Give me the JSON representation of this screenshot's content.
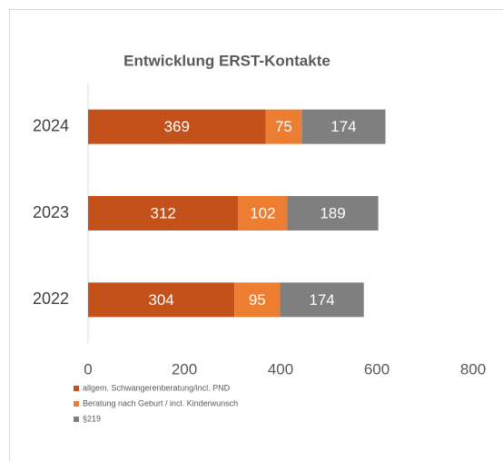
{
  "chart_data": {
    "type": "stacked-barh",
    "title": "Entwicklung ERST-Kontakte",
    "categories": [
      "2024",
      "2023",
      "2022"
    ],
    "series": [
      {
        "name": "allgem. Schwangerenberatung/incl. PND",
        "color": "#c4511a",
        "values": [
          369,
          312,
          304
        ]
      },
      {
        "name": "Beratung nach Geburt / incl. Kinderwunsch",
        "color": "#ed7d31",
        "values": [
          75,
          102,
          95
        ]
      },
      {
        "name": "§219",
        "color": "#7f7f7f",
        "values": [
          174,
          189,
          174
        ]
      }
    ],
    "xlim": [
      0,
      800
    ],
    "xticks": [
      0,
      200,
      400,
      600,
      800
    ],
    "grid": false,
    "legend": "bottom-left"
  }
}
